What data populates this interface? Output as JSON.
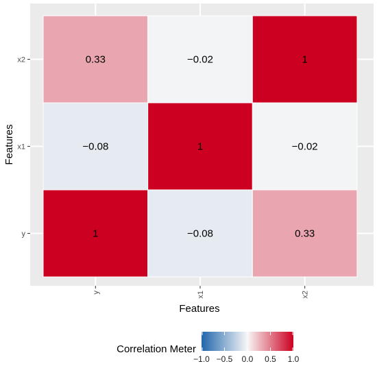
{
  "chart_data": {
    "type": "heatmap",
    "x_categories": [
      "y",
      "x1",
      "x2"
    ],
    "y_categories": [
      "y",
      "x1",
      "x2"
    ],
    "matrix": [
      [
        1,
        -0.08,
        0.33
      ],
      [
        -0.08,
        1,
        -0.02
      ],
      [
        0.33,
        -0.02,
        1
      ]
    ],
    "cell_labels": [
      [
        "1",
        "−0.08",
        "0.33"
      ],
      [
        "−0.08",
        "1",
        "−0.02"
      ],
      [
        "0.33",
        "−0.02",
        "1"
      ]
    ],
    "xlabel": "Features",
    "ylabel": "Features",
    "grid": true,
    "legend": {
      "title": "Correlation Meter",
      "position": "bottom",
      "limits": [
        -1,
        1
      ],
      "ticks": [
        -1.0,
        -0.5,
        0.0,
        0.5,
        1.0
      ],
      "tick_labels": [
        "−1.0",
        "−0.5",
        "0.0",
        "0.5",
        "1.0"
      ]
    },
    "colors": {
      "low": "#2166AC",
      "mid": "#F7F7F7",
      "high": "#CC0020",
      "panel_background": "#EBEBEB",
      "gridline": "#FFFFFF"
    }
  }
}
